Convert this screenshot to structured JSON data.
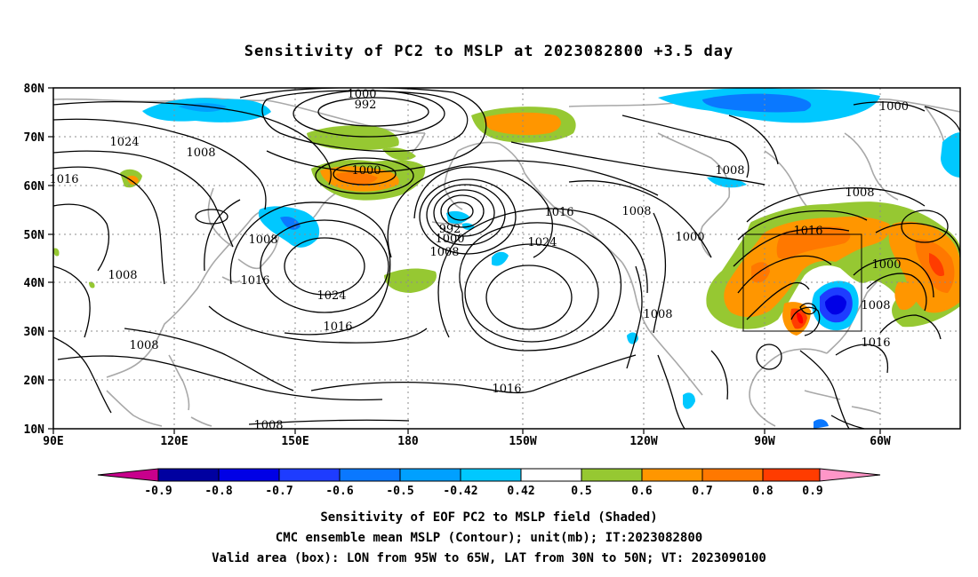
{
  "title": "Sensitivity of PC2 to MSLP at 2023082800 +3.5 day",
  "map": {
    "lat_ticks": [
      "80N",
      "70N",
      "60N",
      "50N",
      "40N",
      "30N",
      "20N",
      "10N"
    ],
    "lon_ticks": [
      "90E",
      "120E",
      "150E",
      "180",
      "150W",
      "120W",
      "90W",
      "60W"
    ],
    "valid_box": {
      "lon_west": -95,
      "lon_east": -65,
      "lat_south": 30,
      "lat_north": 50
    },
    "contour_unit": "mb",
    "contour_labels": [
      "1000",
      "992",
      "1024",
      "1008",
      "1016",
      "1016",
      "1000",
      "1008",
      "992",
      "1000",
      "1008",
      "1016",
      "1024",
      "1008",
      "1016",
      "1008",
      "1000",
      "1008",
      "1024",
      "1008",
      "1016",
      "1008",
      "1016",
      "1000",
      "1008",
      "1016",
      "1008",
      "1000"
    ],
    "colors": {
      "coastline": "#a8a8a8",
      "contour": "#000000",
      "grid": "#8c8c8c"
    }
  },
  "colorbar": {
    "labels": [
      "-0.9",
      "-0.8",
      "-0.7",
      "-0.6",
      "-0.5",
      "-0.42",
      "0.42",
      "0.5",
      "0.6",
      "0.7",
      "0.8",
      "0.9"
    ],
    "colors": [
      "#c8008c",
      "#0000a0",
      "#0000e6",
      "#1e3cff",
      "#0a78ff",
      "#00a0ff",
      "#00c8ff",
      "#ffffff",
      "#96c832",
      "#ff9600",
      "#ff7800",
      "#ff3c00",
      "#ff0000",
      "#ff96c8"
    ]
  },
  "captions": [
    "Sensitivity of EOF PC2 to MSLP field (Shaded)",
    "CMC ensemble mean MSLP (Contour); unit(mb); IT:2023082800",
    "Valid area (box): LON from 95W to 65W, LAT from 30N to 50N; VT: 2023090100"
  ]
}
